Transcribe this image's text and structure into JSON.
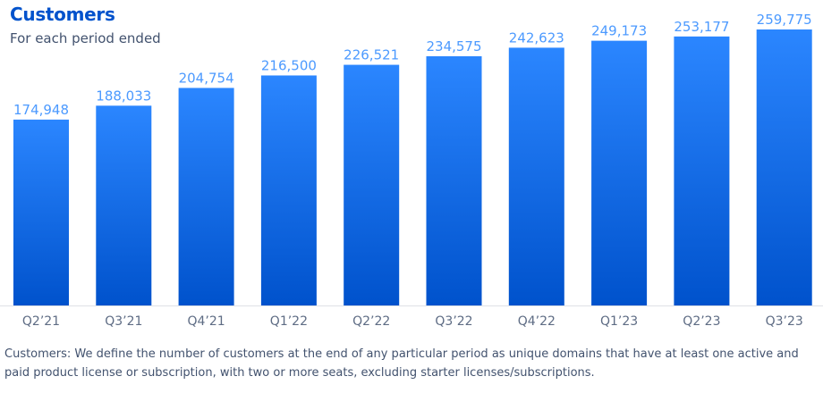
{
  "chart_data": {
    "type": "bar",
    "title": "Customers",
    "subtitle": "For each period ended",
    "categories": [
      "Q2’21",
      "Q3’21",
      "Q4’21",
      "Q1’22",
      "Q2’22",
      "Q3’22",
      "Q4’22",
      "Q1’23",
      "Q2’23",
      "Q3’23"
    ],
    "values": [
      174948,
      188033,
      204754,
      216500,
      226521,
      234575,
      242623,
      249173,
      253177,
      259775
    ],
    "value_labels": [
      "174,948",
      "188,033",
      "204,754",
      "216,500",
      "226,521",
      "234,575",
      "242,623",
      "249,173",
      "253,177",
      "259,775"
    ],
    "xlabel": "",
    "ylabel": "",
    "ylim": [
      0,
      259775
    ],
    "grid": false,
    "legend": "none",
    "colors": {
      "bar_top": "#2b86ff",
      "bar_bottom": "#0052cc",
      "value_label": "#4c9aff",
      "tick_label": "#5e6c84",
      "axis": "#dfe1e6",
      "title": "#0052cc"
    }
  },
  "footnote": "Customers: We define the number of customers at the end of any particular period as unique domains that have at least one active and paid product license or subscription, with two or more seats, excluding starter licenses/subscriptions."
}
